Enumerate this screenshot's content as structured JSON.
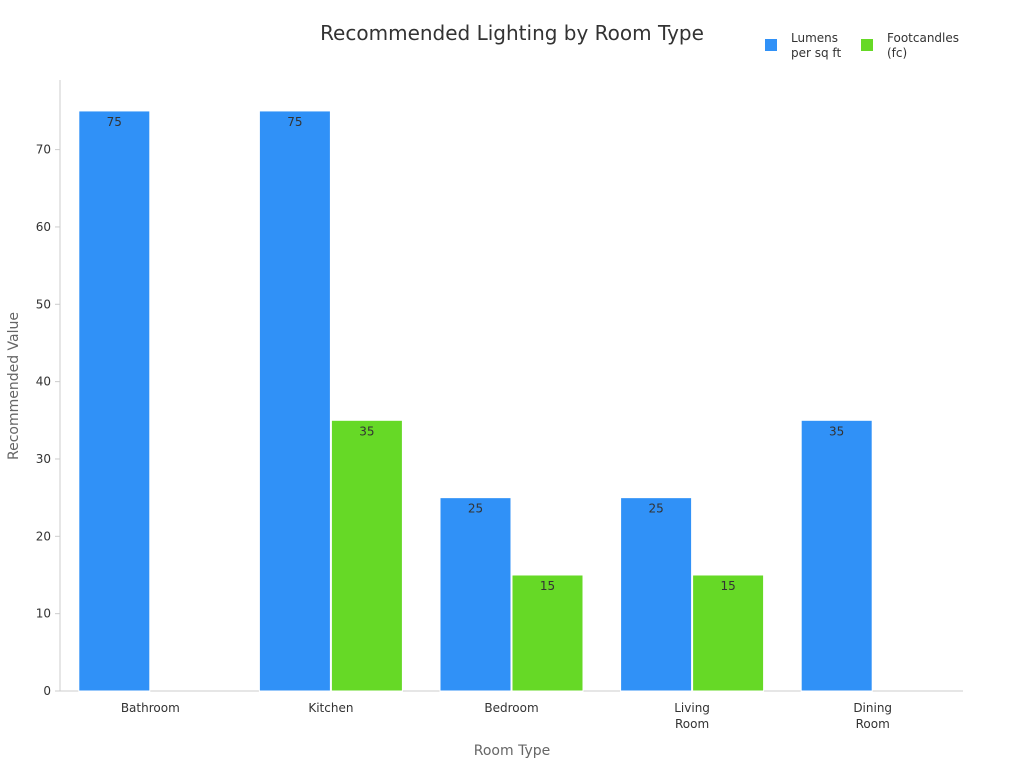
{
  "chart_data": {
    "type": "bar",
    "title": "Recommended Lighting by Room Type",
    "xlabel": "Room Type",
    "ylabel": "Recommended Value",
    "categories": [
      [
        "Bathroom"
      ],
      [
        "Kitchen"
      ],
      [
        "Bedroom"
      ],
      [
        "Living",
        "Room"
      ],
      [
        "Dining",
        "Room"
      ]
    ],
    "series": [
      {
        "name": [
          "Lumens",
          "per sq ft"
        ],
        "color": "#3091f7",
        "values": [
          75,
          75,
          25,
          25,
          35
        ]
      },
      {
        "name": [
          "Footcandles",
          "(fc)"
        ],
        "color": "#66d926",
        "values": [
          null,
          35,
          15,
          15,
          null
        ]
      }
    ],
    "ylim": [
      0,
      79
    ],
    "yticks": [
      0,
      10,
      20,
      30,
      40,
      50,
      60,
      70
    ],
    "grid": false,
    "legend": "top-right",
    "data_labels": true
  }
}
